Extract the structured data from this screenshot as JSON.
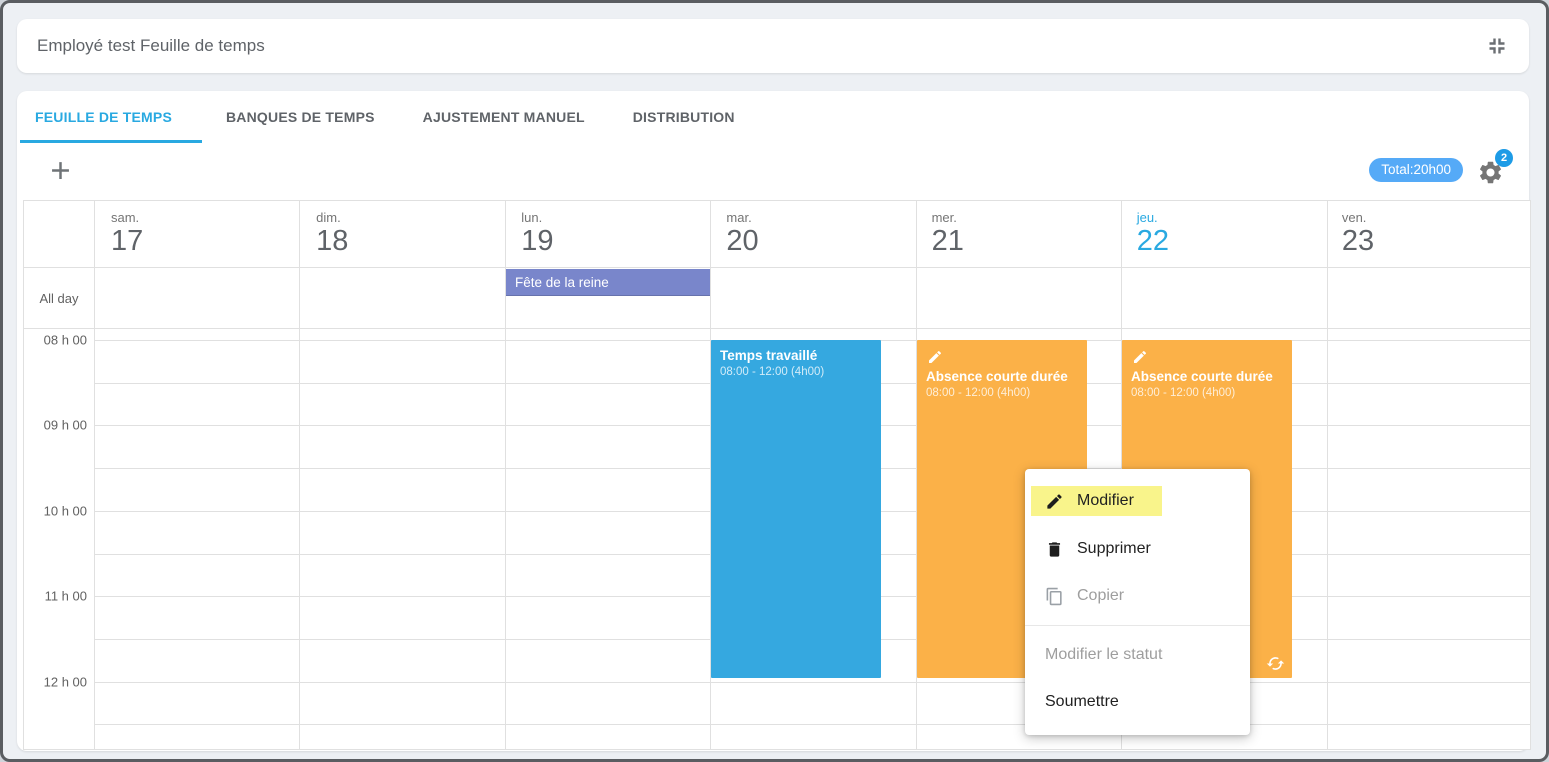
{
  "header": {
    "title": "Employé test Feuille de temps"
  },
  "tabs": [
    {
      "label": "FEUILLE DE TEMPS",
      "active": true
    },
    {
      "label": "BANQUES DE TEMPS",
      "active": false
    },
    {
      "label": "AJUSTEMENT MANUEL",
      "active": false
    },
    {
      "label": "DISTRIBUTION",
      "active": false
    }
  ],
  "toolbar": {
    "total_label": "Total:20h00",
    "settings_badge": "2"
  },
  "calendar": {
    "allday_label": "All day",
    "days": [
      {
        "name": "sam.",
        "number": "17",
        "today": false
      },
      {
        "name": "dim.",
        "number": "18",
        "today": false
      },
      {
        "name": "lun.",
        "number": "19",
        "today": false
      },
      {
        "name": "mar.",
        "number": "20",
        "today": false
      },
      {
        "name": "mer.",
        "number": "21",
        "today": false
      },
      {
        "name": "jeu.",
        "number": "22",
        "today": true
      },
      {
        "name": "ven.",
        "number": "23",
        "today": false
      }
    ],
    "hours": [
      "08 h 00",
      "09 h 00",
      "10 h 00",
      "11 h 00",
      "12 h 00"
    ],
    "allday_event": {
      "title": "Fête de la reine",
      "day": "lun. 19",
      "color": "#7986cb"
    },
    "events": [
      {
        "title": "Temps travaillé",
        "time": "08:00 - 12:00 (4h00)",
        "day": "mar. 20",
        "color": "#35a8e0",
        "icon": ""
      },
      {
        "title": "Absence courte durée",
        "time": "08:00 - 12:00 (4h00)",
        "day": "mer. 21",
        "color": "#fbb148",
        "icon": "pencil"
      },
      {
        "title": "Absence courte durée",
        "time": "08:00 - 12:00 (4h00)",
        "day": "jeu. 22",
        "color": "#fbb148",
        "icon": "pencil",
        "badge_icon": "sync"
      }
    ]
  },
  "context_menu": {
    "items": [
      {
        "label": "Modifier",
        "icon": "pencil-icon",
        "highlighted": true,
        "disabled": false
      },
      {
        "label": "Supprimer",
        "icon": "trash-icon",
        "highlighted": false,
        "disabled": false
      },
      {
        "label": "Copier",
        "icon": "copy-icon",
        "highlighted": false,
        "disabled": true
      },
      {
        "label": "Modifier le statut",
        "icon": "",
        "highlighted": false,
        "disabled": true
      },
      {
        "label": "Soumettre",
        "icon": "",
        "highlighted": false,
        "disabled": false
      }
    ]
  },
  "colors": {
    "bg": "#edf0f4",
    "window_border": "#5a5d61",
    "text_gray": "#5f6368",
    "accent_blue": "#29a9e1",
    "event_blue": "#35a8e0",
    "event_orange": "#fbb148",
    "event_purple": "#7986cb",
    "total_pill_blue": "#55aaf7",
    "badge_blue": "#1d9be6",
    "menu_highlight_yellow": "#f9f48b",
    "grid_line": "#e0e0e0",
    "disabled_gray": "#9e9e9e"
  }
}
